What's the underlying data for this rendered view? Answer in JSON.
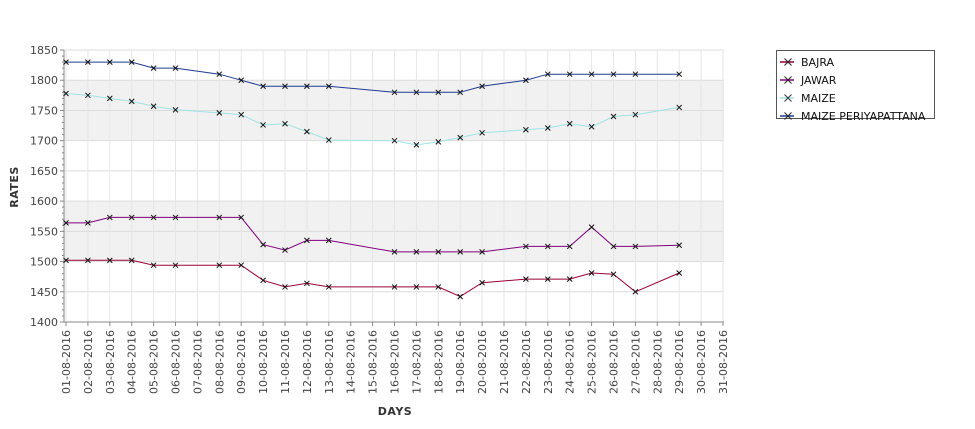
{
  "chart_data": {
    "type": "line",
    "title": "",
    "xlabel": "DAYS",
    "ylabel": "RATES",
    "ylim": [
      1400,
      1850
    ],
    "yticks": [
      1400,
      1450,
      1500,
      1550,
      1600,
      1650,
      1700,
      1750,
      1800,
      1850
    ],
    "x": [
      "01-08-2016",
      "02-08-2016",
      "03-08-2016",
      "04-08-2016",
      "05-08-2016",
      "06-08-2016",
      "07-08-2016",
      "08-08-2016",
      "09-08-2016",
      "10-08-2016",
      "11-08-2016",
      "12-08-2016",
      "13-08-2016",
      "14-08-2016",
      "15-08-2016",
      "16-08-2016",
      "17-08-2016",
      "18-08-2016",
      "19-08-2016",
      "20-08-2016",
      "21-08-2016",
      "22-08-2016",
      "23-08-2016",
      "24-08-2016",
      "25-08-2016",
      "26-08-2016",
      "27-08-2016",
      "28-08-2016",
      "29-08-2016",
      "30-08-2016",
      "31-08-2016"
    ],
    "grid": true,
    "legend_position": "right",
    "series": [
      {
        "name": "BAJRA",
        "color": "#990033",
        "points": [
          [
            "01-08-2016",
            1502
          ],
          [
            "02-08-2016",
            1502
          ],
          [
            "03-08-2016",
            1502
          ],
          [
            "04-08-2016",
            1502
          ],
          [
            "05-08-2016",
            1494
          ],
          [
            "06-08-2016",
            1494
          ],
          [
            "08-08-2016",
            1494
          ],
          [
            "09-08-2016",
            1494
          ],
          [
            "10-08-2016",
            1469
          ],
          [
            "11-08-2016",
            1458
          ],
          [
            "12-08-2016",
            1464
          ],
          [
            "13-08-2016",
            1458
          ],
          [
            "16-08-2016",
            1458
          ],
          [
            "17-08-2016",
            1458
          ],
          [
            "18-08-2016",
            1458
          ],
          [
            "19-08-2016",
            1442
          ],
          [
            "20-08-2016",
            1465
          ],
          [
            "22-08-2016",
            1471
          ],
          [
            "23-08-2016",
            1471
          ],
          [
            "24-08-2016",
            1471
          ],
          [
            "25-08-2016",
            1481
          ],
          [
            "26-08-2016",
            1479
          ],
          [
            "27-08-2016",
            1450
          ],
          [
            "29-08-2016",
            1481
          ]
        ]
      },
      {
        "name": "JAWAR",
        "color": "#800080",
        "points": [
          [
            "01-08-2016",
            1564
          ],
          [
            "02-08-2016",
            1564
          ],
          [
            "03-08-2016",
            1573
          ],
          [
            "04-08-2016",
            1573
          ],
          [
            "05-08-2016",
            1573
          ],
          [
            "06-08-2016",
            1573
          ],
          [
            "08-08-2016",
            1573
          ],
          [
            "09-08-2016",
            1573
          ],
          [
            "10-08-2016",
            1528
          ],
          [
            "11-08-2016",
            1519
          ],
          [
            "12-08-2016",
            1535
          ],
          [
            "13-08-2016",
            1535
          ],
          [
            "16-08-2016",
            1516
          ],
          [
            "17-08-2016",
            1516
          ],
          [
            "18-08-2016",
            1516
          ],
          [
            "19-08-2016",
            1516
          ],
          [
            "20-08-2016",
            1516
          ],
          [
            "22-08-2016",
            1525
          ],
          [
            "23-08-2016",
            1525
          ],
          [
            "24-08-2016",
            1525
          ],
          [
            "25-08-2016",
            1557
          ],
          [
            "26-08-2016",
            1525
          ],
          [
            "27-08-2016",
            1525
          ],
          [
            "29-08-2016",
            1527
          ]
        ]
      },
      {
        "name": "MAIZE",
        "color": "#9fe3e3",
        "points": [
          [
            "01-08-2016",
            1778
          ],
          [
            "02-08-2016",
            1775
          ],
          [
            "03-08-2016",
            1770
          ],
          [
            "04-08-2016",
            1765
          ],
          [
            "05-08-2016",
            1757
          ],
          [
            "06-08-2016",
            1751
          ],
          [
            "08-08-2016",
            1746
          ],
          [
            "09-08-2016",
            1743
          ],
          [
            "10-08-2016",
            1726
          ],
          [
            "11-08-2016",
            1728
          ],
          [
            "12-08-2016",
            1715
          ],
          [
            "13-08-2016",
            1701
          ],
          [
            "16-08-2016",
            1700
          ],
          [
            "17-08-2016",
            1693
          ],
          [
            "18-08-2016",
            1698
          ],
          [
            "19-08-2016",
            1705
          ],
          [
            "20-08-2016",
            1713
          ],
          [
            "22-08-2016",
            1718
          ],
          [
            "23-08-2016",
            1721
          ],
          [
            "24-08-2016",
            1728
          ],
          [
            "25-08-2016",
            1723
          ],
          [
            "26-08-2016",
            1740
          ],
          [
            "27-08-2016",
            1743
          ],
          [
            "29-08-2016",
            1755
          ]
        ]
      },
      {
        "name": "MAIZE PERIYAPATTANA",
        "color": "#1f3a93",
        "points": [
          [
            "01-08-2016",
            1830
          ],
          [
            "02-08-2016",
            1830
          ],
          [
            "03-08-2016",
            1830
          ],
          [
            "04-08-2016",
            1830
          ],
          [
            "05-08-2016",
            1820
          ],
          [
            "06-08-2016",
            1820
          ],
          [
            "08-08-2016",
            1810
          ],
          [
            "09-08-2016",
            1800
          ],
          [
            "10-08-2016",
            1790
          ],
          [
            "11-08-2016",
            1790
          ],
          [
            "12-08-2016",
            1790
          ],
          [
            "13-08-2016",
            1790
          ],
          [
            "16-08-2016",
            1780
          ],
          [
            "17-08-2016",
            1780
          ],
          [
            "18-08-2016",
            1780
          ],
          [
            "19-08-2016",
            1780
          ],
          [
            "20-08-2016",
            1790
          ],
          [
            "22-08-2016",
            1800
          ],
          [
            "23-08-2016",
            1810
          ],
          [
            "24-08-2016",
            1810
          ],
          [
            "25-08-2016",
            1810
          ],
          [
            "26-08-2016",
            1810
          ],
          [
            "27-08-2016",
            1810
          ],
          [
            "29-08-2016",
            1810
          ]
        ]
      }
    ]
  }
}
